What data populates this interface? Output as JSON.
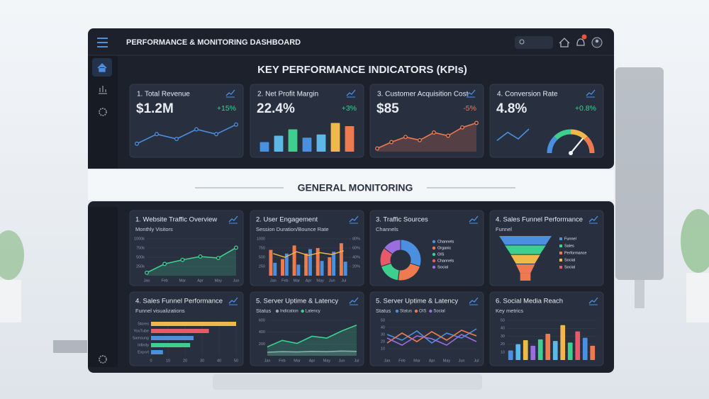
{
  "header": {
    "title": "PERFORMANCE & MONITORING DASHBOARD"
  },
  "kpi_section": {
    "title": "KEY PERFORMANCE INDICATORS (KPIs)",
    "cards": [
      {
        "title": "1. Total Revenue",
        "value": "$1.2M",
        "change": "+15%",
        "change_color": "#3ecf8e",
        "chart": {
          "type": "line",
          "color": "#4a8fe0",
          "markers": true,
          "ylim": [
            0,
            4
          ],
          "values": [
            1,
            2.2,
            1.6,
            2.8,
            2.2,
            3.4
          ]
        }
      },
      {
        "title": "2. Net Profit Margin",
        "value": "22.4%",
        "change": "+3%",
        "change_color": "#3ecf8e",
        "chart": {
          "type": "bar",
          "ylim": [
            0,
            5
          ],
          "values": [
            1.5,
            2.5,
            3.5,
            2.2,
            2.7,
            4.5,
            4
          ],
          "colors": [
            "#4a8fe0",
            "#5cb8e6",
            "#3ecf8e",
            "#4a8fe0",
            "#5cb8e6",
            "#f0b84a",
            "#f07a50"
          ]
        }
      },
      {
        "title": "3. Customer Acquisition Cost",
        "value": "$85",
        "change": "-5%",
        "change_color": "#f07a50",
        "chart": {
          "type": "line",
          "color": "#f07a50",
          "area": true,
          "markers": true,
          "ylim": [
            0,
            5
          ],
          "values": [
            0.5,
            1.5,
            2.3,
            1.8,
            3,
            2.5,
            3.8,
            4.5
          ]
        }
      },
      {
        "title": "4. Conversion Rate",
        "value": "4.8%",
        "change": "+0.8%",
        "change_color": "#3ecf8e",
        "chart": {
          "type": "line_gauge",
          "color": "#4a8fe0",
          "ylim": [
            0,
            3
          ],
          "values": [
            1,
            2,
            1.2,
            2.4
          ],
          "gauge": {
            "value": 72,
            "range": [
              0,
              100
            ]
          }
        }
      }
    ]
  },
  "monitoring": {
    "title": "GENERAL MONITORING",
    "cards": [
      {
        "title": "1. Website Traffic Overview",
        "subtitle": "Monthly Visitors",
        "chart": {
          "type": "line",
          "color": "#3ecf8e",
          "area": true,
          "markers": true,
          "ylim": [
            0,
            1000
          ],
          "yticks": [
            {
              "value": 250,
              "label": "250k"
            },
            {
              "value": 500,
              "label": "500k"
            },
            {
              "value": 750,
              "label": "750k"
            },
            {
              "value": 1000,
              "label": "1000k"
            }
          ],
          "categories": [
            "Jan",
            "Feb",
            "Mar",
            "Apr",
            "May",
            "Jun"
          ],
          "values": [
            80,
            320,
            430,
            520,
            480,
            760
          ]
        }
      },
      {
        "title": "2. User Engagement",
        "subtitle": "Session Duration/Bounce Rate",
        "chart": {
          "type": "combo",
          "ylim": [
            0,
            1000
          ],
          "yticks": [
            250,
            500,
            750,
            1000
          ],
          "y2lim": [
            0,
            80
          ],
          "y2ticks": [
            {
              "value": 20,
              "label": "20%"
            },
            {
              "value": 40,
              "label": "40%"
            },
            {
              "value": 60,
              "label": "60%"
            },
            {
              "value": 80,
              "label": "80%"
            }
          ],
          "categories": [
            "Jan",
            "Feb",
            "Mar",
            "Apr",
            "May",
            "Jun",
            "Jul"
          ],
          "series": [
            {
              "kind": "bar",
              "color": "#f07a50",
              "values": [
                700,
                450,
                820,
                600,
                750,
                500,
                880
              ]
            },
            {
              "kind": "bar",
              "color": "#4a8fe0",
              "values": [
                350,
                600,
                300,
                720,
                400,
                650,
                380
              ]
            },
            {
              "kind": "line",
              "axis": "y2",
              "color": "#f0b84a",
              "values": [
                48,
                40,
                52,
                44,
                50,
                46,
                54
              ]
            }
          ]
        }
      },
      {
        "title": "3. Traffic Sources",
        "subtitle": "Channels",
        "chart": {
          "type": "donut",
          "values": [
            30,
            22,
            18,
            15,
            15
          ],
          "labels": [
            "Channels",
            "Organic",
            "OIS",
            "Channels",
            "Social"
          ],
          "colors": [
            "#4a8fe0",
            "#f07a50",
            "#3ecf8e",
            "#e85a6a",
            "#9b6ee0"
          ]
        }
      },
      {
        "title": "4. Sales Funnel Performance",
        "subtitle": "Funnel",
        "chart": {
          "type": "funnel",
          "values": [
            100,
            78,
            56,
            36
          ],
          "colors": [
            "#4a8fe0",
            "#3ecf8e",
            "#f0b84a",
            "#f07a50"
          ],
          "legend": [
            "Funnel",
            "Sales",
            "Performance",
            "Social",
            "Social"
          ],
          "legend_colors": [
            "#4a8fe0",
            "#3ecf8e",
            "#f07a50",
            "#f0b84a",
            "#e85a6a"
          ]
        }
      },
      {
        "title": "4. Sales Funnel Performance",
        "subtitle": "Funnel visualizations",
        "chart": {
          "type": "hbar",
          "xlim": [
            0,
            50
          ],
          "xticks": [
            0,
            10,
            20,
            30,
            40,
            50
          ],
          "categories": [
            "Stores",
            "YouTube",
            "Samsung",
            "Infinity",
            "Export"
          ],
          "values": [
            50,
            34,
            25,
            23,
            7
          ],
          "colors": [
            "#f0b84a",
            "#e85a6a",
            "#4a8fe0",
            "#3ecf8e",
            "#4a8fe0"
          ]
        }
      },
      {
        "title": "5. Server Uptime & Latency",
        "subtitle": "Status",
        "chart": {
          "type": "line",
          "area": true,
          "ylim": [
            0,
            600
          ],
          "yticks": [
            200,
            400,
            600
          ],
          "categories": [
            "Jan",
            "Feb",
            "Mar",
            "Apr",
            "May",
            "Jun",
            "Jul"
          ],
          "series": [
            {
              "name": "Indication",
              "color": "#9aa4b2",
              "values": [
                60,
                70,
                65,
                75,
                70,
                80,
                75
              ]
            },
            {
              "name": "Latency",
              "color": "#3ecf8e",
              "values": [
                150,
                260,
                210,
                330,
                300,
                420,
                520
              ]
            }
          ]
        }
      },
      {
        "title": "5. Server Uptime & Latency",
        "subtitle": "Status",
        "chart": {
          "type": "line",
          "ylim": [
            0,
            50
          ],
          "yticks": [
            10,
            20,
            30,
            40,
            50
          ],
          "categories": [
            "Jan",
            "Feb",
            "Mar",
            "Apr",
            "May",
            "Jun",
            "Jul"
          ],
          "series": [
            {
              "name": "Status",
              "color": "#4a8fe0",
              "values": [
                30,
                22,
                35,
                18,
                32,
                25,
                38
              ]
            },
            {
              "name": "OIS",
              "color": "#f07a50",
              "values": [
                18,
                32,
                20,
                34,
                22,
                36,
                28
              ]
            },
            {
              "name": "Social",
              "color": "#9b6ee0",
              "values": [
                25,
                15,
                28,
                24,
                15,
                30,
                20
              ]
            }
          ]
        }
      },
      {
        "title": "6. Social Media Reach",
        "subtitle": "Key metrics",
        "chart": {
          "type": "bar",
          "ylim": [
            0,
            50
          ],
          "yticks": [
            10,
            20,
            30,
            40,
            50
          ],
          "values": [
            12,
            20,
            25,
            18,
            26,
            33,
            24,
            44,
            22,
            36,
            28,
            18
          ],
          "colors": [
            "#4a8fe0",
            "#5cb8e6",
            "#f0b84a",
            "#9b6ee0",
            "#3ecf8e",
            "#f07a50",
            "#5cb8e6",
            "#f0b84a",
            "#3ecf8e",
            "#e85a6a",
            "#4a8fe0",
            "#f07a50"
          ]
        }
      }
    ]
  }
}
